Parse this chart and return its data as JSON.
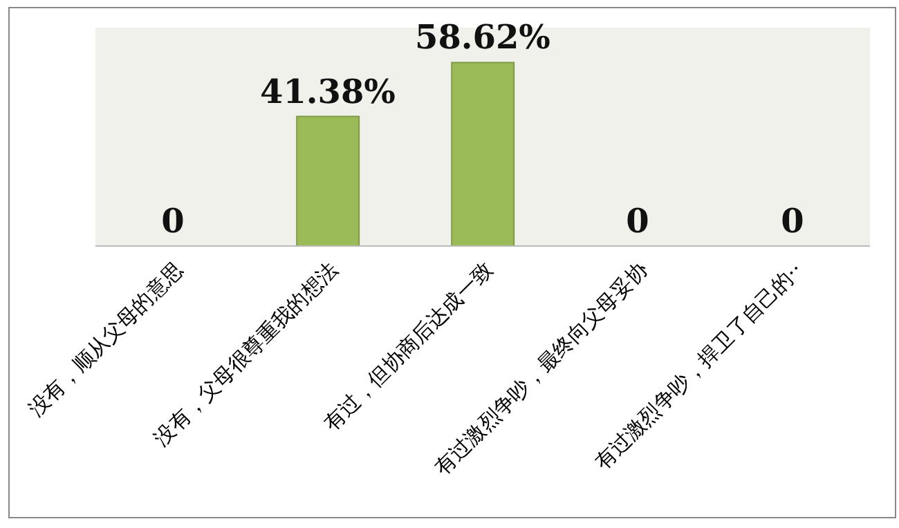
{
  "chart_data": {
    "type": "bar",
    "categories": [
      "没有，顺从父母的意思",
      "没有，父母很尊重我的想法",
      "有过，但协商后达成一致",
      "有过激烈争吵，最终向父母妥协",
      "有过激烈争吵，捍卫了自己的··"
    ],
    "values": [
      0,
      41.38,
      58.62,
      0,
      0
    ],
    "value_labels": [
      "0",
      "41.38%",
      "58.62%",
      "0",
      "0"
    ],
    "color": "#9bbb59"
  }
}
